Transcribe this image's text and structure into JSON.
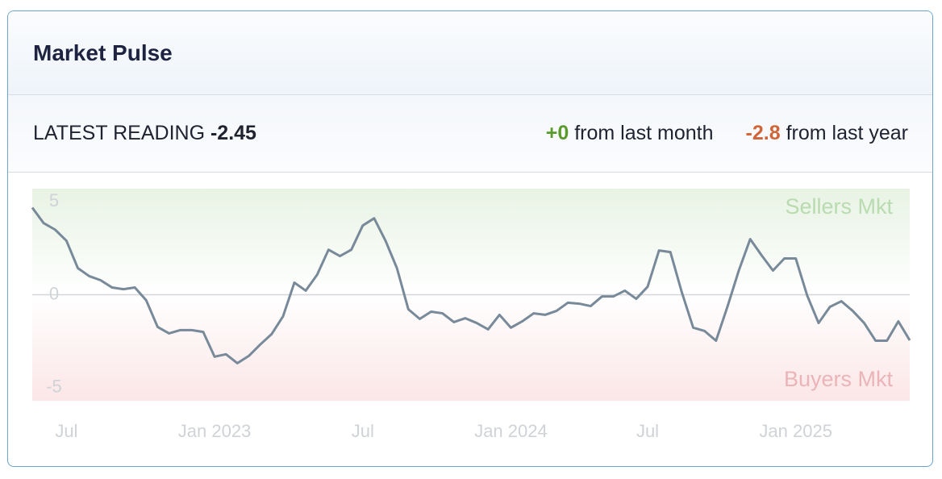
{
  "header": {
    "title": "Market Pulse"
  },
  "stats": {
    "label": "LATEST READING",
    "value": "-2.45",
    "month": {
      "change": "+0",
      "text": "from last month"
    },
    "year": {
      "change": "-2.8",
      "text": "from last year"
    }
  },
  "chart_data": {
    "type": "line",
    "color": "#788a99",
    "categories": [
      null,
      null,
      null,
      "Jul",
      null,
      null,
      null,
      null,
      null,
      null,
      null,
      null,
      null,
      null,
      null,
      null,
      "Jan 2023",
      null,
      null,
      null,
      null,
      null,
      null,
      null,
      null,
      null,
      null,
      null,
      null,
      "Jul",
      null,
      null,
      null,
      null,
      null,
      null,
      null,
      null,
      null,
      null,
      null,
      null,
      "Jan 2024",
      null,
      null,
      null,
      null,
      null,
      null,
      null,
      null,
      null,
      null,
      null,
      "Jul",
      null,
      null,
      null,
      null,
      null,
      null,
      null,
      null,
      null,
      null,
      null,
      null,
      "Jan 2025",
      null,
      null,
      null,
      null,
      null,
      null,
      null,
      null,
      null,
      null
    ],
    "values": [
      4.68,
      3.85,
      3.5,
      2.9,
      1.43,
      1.0,
      0.78,
      0.39,
      0.3,
      0.39,
      -0.3,
      -1.73,
      -2.08,
      -1.9,
      -1.9,
      -2.0,
      -3.33,
      -3.2,
      -3.68,
      -3.29,
      -2.68,
      -2.12,
      -1.17,
      0.65,
      0.22,
      1.08,
      2.42,
      2.08,
      2.42,
      3.72,
      4.11,
      2.9,
      1.43,
      -0.78,
      -1.3,
      -0.91,
      -1.0,
      -1.47,
      -1.26,
      -1.52,
      -1.86,
      -1.08,
      -1.77,
      -1.43,
      -1.0,
      -1.08,
      -0.87,
      -0.43,
      -0.48,
      -0.61,
      -0.09,
      -0.09,
      0.22,
      -0.22,
      0.43,
      2.38,
      2.29,
      0.13,
      -1.77,
      -1.95,
      -2.47,
      -0.65,
      1.3,
      2.99,
      2.12,
      1.3,
      1.95,
      1.95,
      -0.04,
      -1.52,
      -0.65,
      -0.35,
      -0.87,
      -1.52,
      -2.47,
      -2.47,
      -1.43,
      -2.45
    ],
    "ylim": [
      -5.7,
      5.7
    ],
    "yticks": [
      -5,
      0,
      5
    ],
    "zones": [
      {
        "label": "Sellers Mkt",
        "color": "#b9dbb0"
      },
      {
        "label": "Buyers Mkt",
        "color": "#eab4b8"
      }
    ]
  }
}
